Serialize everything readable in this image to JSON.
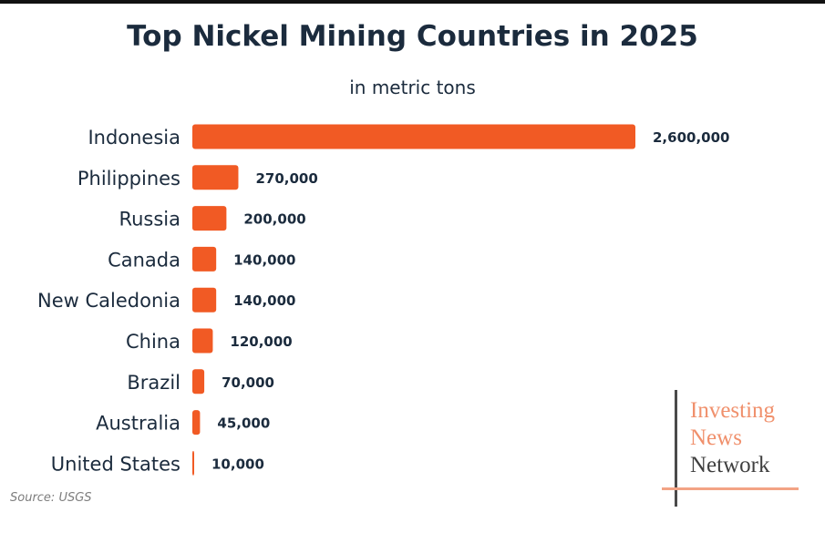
{
  "chart_data": {
    "type": "bar",
    "orientation": "horizontal",
    "title": "Top Nickel Mining Countries in 2025",
    "subtitle": "in metric tons",
    "categories": [
      "Indonesia",
      "Philippines",
      "Russia",
      "Canada",
      "New Caledonia",
      "China",
      "Brazil",
      "Australia",
      "United States"
    ],
    "values": [
      2600000,
      270000,
      200000,
      140000,
      140000,
      120000,
      70000,
      45000,
      10000
    ],
    "value_labels": [
      "2,600,000",
      "270,000",
      "200,000",
      "140,000",
      "140,000",
      "120,000",
      "70,000",
      "45,000",
      "10,000"
    ],
    "xlim": [
      0,
      2600000
    ],
    "bar_color": "#f15a24",
    "grid": false,
    "legend": "none"
  },
  "source": "Source: USGS",
  "logo": {
    "line1": "Investing",
    "line2": "News",
    "line3": "Network"
  },
  "colors": {
    "text": "#1b2b3d",
    "bar": "#f15a24",
    "logo_accent": "#f0906c"
  }
}
